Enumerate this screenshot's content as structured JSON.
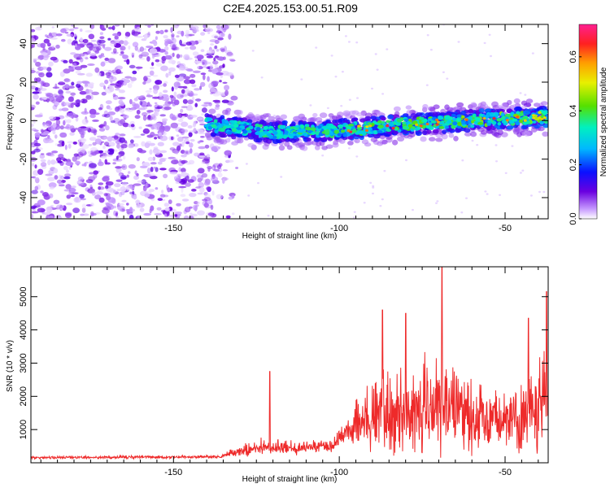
{
  "title": "C2E4.2025.153.00.51.R09",
  "chart_data": [
    {
      "type": "heatmap",
      "name": "spectrogram",
      "xlabel": "Height of straight line (km)",
      "ylabel": "Frequency (Hz)",
      "xlim": [
        -193,
        -37
      ],
      "ylim": [
        -51,
        50
      ],
      "x_ticks": [
        -150,
        -100,
        -50
      ],
      "x_tick_labels": [
        "-150",
        "-100",
        "-50"
      ],
      "y_ticks": [
        -40,
        -20,
        0,
        20,
        40
      ],
      "y_tick_labels": [
        "-40",
        "-20",
        "0",
        "20",
        "40"
      ],
      "noise_region_x": [
        -193,
        -130
      ],
      "signal_start_x": -140,
      "signal_band_center": [
        {
          "x": -140,
          "y": -2
        },
        {
          "x": -120,
          "y": -6
        },
        {
          "x": -100,
          "y": -5
        },
        {
          "x": -80,
          "y": -2
        },
        {
          "x": -60,
          "y": 0
        },
        {
          "x": -38,
          "y": 2
        }
      ],
      "colorbar": {
        "label": "Normalized spectral amplitude",
        "range": [
          0.0,
          0.72
        ],
        "ticks": [
          0.0,
          0.2,
          0.4,
          0.6
        ],
        "tick_labels": [
          "0.0",
          "0.2",
          "0.4",
          "0.6"
        ]
      }
    },
    {
      "type": "line",
      "name": "snr",
      "xlabel": "Height of straight line (km)",
      "ylabel": "SNR (10 * v/v)",
      "xlim": [
        -193,
        -37
      ],
      "ylim": [
        0,
        5900
      ],
      "x_ticks": [
        -150,
        -100,
        -50
      ],
      "x_tick_labels": [
        "-150",
        "-100",
        "-50"
      ],
      "y_ticks": [
        1000,
        2000,
        3000,
        4000,
        5000
      ],
      "y_tick_labels": [
        "1000",
        "2000",
        "3000",
        "4000",
        "5000"
      ],
      "color": "#ee2a2a",
      "envelope": [
        {
          "x": -193,
          "base": 150,
          "amp": 80
        },
        {
          "x": -136,
          "base": 170,
          "amp": 100
        },
        {
          "x": -132,
          "base": 300,
          "amp": 300
        },
        {
          "x": -125,
          "base": 420,
          "amp": 500
        },
        {
          "x": -110,
          "base": 420,
          "amp": 400
        },
        {
          "x": -102,
          "base": 500,
          "amp": 400
        },
        {
          "x": -98,
          "base": 900,
          "amp": 1000
        },
        {
          "x": -90,
          "base": 1200,
          "amp": 2300
        },
        {
          "x": -80,
          "base": 1400,
          "amp": 2800
        },
        {
          "x": -70,
          "base": 1500,
          "amp": 3000
        },
        {
          "x": -60,
          "base": 1300,
          "amp": 2600
        },
        {
          "x": -50,
          "base": 1100,
          "amp": 1600
        },
        {
          "x": -42,
          "base": 1200,
          "amp": 2800
        },
        {
          "x": -37,
          "base": 1500,
          "amp": 3800
        }
      ],
      "peaks": [
        {
          "x": -121,
          "y": 2750
        },
        {
          "x": -87,
          "y": 4600
        },
        {
          "x": -80,
          "y": 4500
        },
        {
          "x": -69,
          "y": 5900
        },
        {
          "x": -43,
          "y": 4350
        },
        {
          "x": -37.5,
          "y": 5150
        }
      ]
    }
  ]
}
